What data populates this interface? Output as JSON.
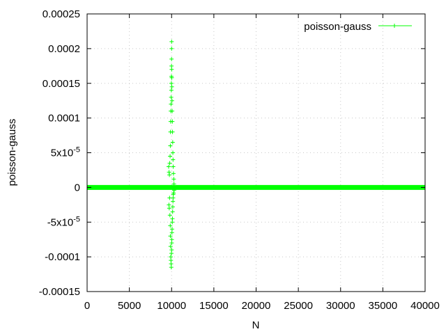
{
  "chart_data": {
    "type": "scatter",
    "xlabel": "N",
    "ylabel": "poisson-gauss",
    "xlim": [
      0,
      40000
    ],
    "ylim": [
      -0.00015,
      0.00025
    ],
    "grid": true,
    "legend_position": "top-right",
    "x_ticks": [
      0,
      5000,
      10000,
      15000,
      20000,
      25000,
      30000,
      35000,
      40000
    ],
    "x_tick_labels": [
      "0",
      "5000",
      "10000",
      "15000",
      "20000",
      "25000",
      "30000",
      "35000",
      "40000"
    ],
    "y_ticks": [
      -0.00015,
      -0.0001,
      -5e-05,
      0,
      5e-05,
      0.0001,
      0.00015,
      0.0002,
      0.00025
    ],
    "y_tick_labels": [
      "-0.00015",
      "-0.0001",
      "-5x10-5",
      "0",
      "5x10-5",
      "0.0001",
      "0.00015",
      "0.0002",
      "0.00025"
    ],
    "series": [
      {
        "name": "poisson-gauss",
        "color": "#00ff00",
        "marker": "plus",
        "baseline": {
          "x_range": [
            0,
            40000
          ],
          "y": 0
        },
        "points": [
          [
            9650,
            3e-05
          ],
          [
            9680,
            -2.5e-05
          ],
          [
            9700,
            2.2e-05
          ],
          [
            9720,
            -3e-05
          ],
          [
            9740,
            1.8e-05
          ],
          [
            9760,
            -1.5e-05
          ],
          [
            9780,
            3.5e-05
          ],
          [
            9800,
            -4e-05
          ],
          [
            9820,
            4.5e-05
          ],
          [
            9840,
            -5.5e-05
          ],
          [
            9850,
            6e-05
          ],
          [
            9860,
            -7e-05
          ],
          [
            9870,
            8e-05
          ],
          [
            9880,
            -8.5e-05
          ],
          [
            9890,
            9.5e-05
          ],
          [
            9900,
            -0.0001
          ],
          [
            9910,
            0.00011
          ],
          [
            9920,
            -0.000105
          ],
          [
            9930,
            0.00012
          ],
          [
            9940,
            -0.00011
          ],
          [
            9950,
            0.00013
          ],
          [
            9960,
            -0.000115
          ],
          [
            9970,
            0.00014
          ],
          [
            9975,
            0.00015
          ],
          [
            9980,
            -9.5e-05
          ],
          [
            9985,
            0.00016
          ],
          [
            9990,
            0.000175
          ],
          [
            9995,
            0.000185
          ],
          [
            10000,
            0.0002
          ],
          [
            10003,
            0.00021
          ],
          [
            10006,
            -9e-05
          ],
          [
            10010,
            0.00017
          ],
          [
            10015,
            -8e-05
          ],
          [
            10020,
            0.000158
          ],
          [
            10025,
            -7.5e-05
          ],
          [
            10030,
            0.000145
          ],
          [
            10040,
            -6.5e-05
          ],
          [
            10050,
            0.000125
          ],
          [
            10060,
            -6e-05
          ],
          [
            10070,
            0.00011
          ],
          [
            10080,
            -5e-05
          ],
          [
            10090,
            9.5e-05
          ],
          [
            10100,
            -4.5e-05
          ],
          [
            10110,
            8e-05
          ],
          [
            10120,
            -3.5e-05
          ],
          [
            10130,
            6.5e-05
          ],
          [
            10140,
            -2.8e-05
          ],
          [
            10150,
            5e-05
          ],
          [
            10160,
            -2e-05
          ],
          [
            10170,
            4e-05
          ],
          [
            10180,
            -1.5e-05
          ],
          [
            10190,
            3e-05
          ],
          [
            10200,
            -1e-05
          ],
          [
            10220,
            2e-05
          ],
          [
            10240,
            -8e-06
          ],
          [
            10260,
            1.2e-05
          ],
          [
            10280,
            5e-06
          ],
          [
            10300,
            -4e-06
          ]
        ]
      }
    ]
  }
}
